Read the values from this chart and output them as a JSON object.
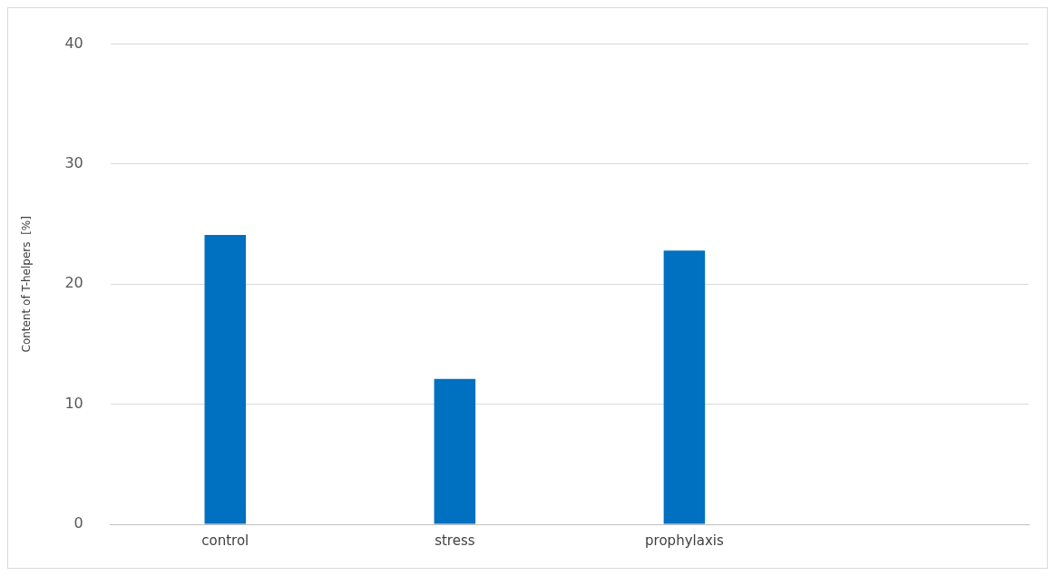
{
  "chart_data": {
    "type": "bar",
    "ylabel": "Content of T-helpers  [%]",
    "categories": [
      "control",
      "stress",
      "prophylaxis",
      null
    ],
    "series": [
      {
        "color": "#0070c0",
        "values": [
          24.1,
          12.1,
          22.8,
          null
        ]
      }
    ],
    "ylim": [
      0,
      40
    ],
    "yticks": [
      0,
      10,
      20,
      30,
      40
    ],
    "grid": "y",
    "legend": false
  }
}
